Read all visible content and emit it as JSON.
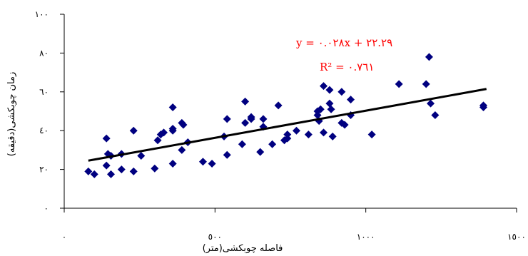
{
  "chart_data": {
    "type": "scatter",
    "xlabel": "فاصله چوبکشی(متر)",
    "ylabel": "زمان چوبکشی(دقیقه)",
    "xlim": [
      0,
      1500
    ],
    "ylim": [
      0,
      100
    ],
    "x_ticks": [
      0,
      500,
      1000,
      1500
    ],
    "x_tick_labels": [
      "٠",
      "٥٠٠",
      "١٠٠٠",
      "١٥٠٠"
    ],
    "y_ticks": [
      0,
      20,
      40,
      60,
      80,
      100
    ],
    "y_tick_labels": [
      "٠",
      "٢٠",
      "٤٠",
      "٦٠",
      "٨٠",
      "١٠٠"
    ],
    "marker_color": "#000080",
    "equation_color": "#ff0000",
    "trendline_color": "#000000",
    "series": [
      {
        "marker": "diamond",
        "points": [
          [
            80,
            19
          ],
          [
            100,
            17.5
          ],
          [
            140,
            36
          ],
          [
            145,
            28
          ],
          [
            140,
            22
          ],
          [
            155,
            27
          ],
          [
            155,
            17.5
          ],
          [
            190,
            28
          ],
          [
            190,
            20
          ],
          [
            230,
            19
          ],
          [
            230,
            40
          ],
          [
            255,
            27
          ],
          [
            300,
            20.5
          ],
          [
            310,
            35
          ],
          [
            320,
            38
          ],
          [
            330,
            39
          ],
          [
            360,
            52
          ],
          [
            360,
            41
          ],
          [
            360,
            40
          ],
          [
            360,
            23
          ],
          [
            390,
            30
          ],
          [
            390,
            44
          ],
          [
            395,
            43
          ],
          [
            410,
            34
          ],
          [
            460,
            24
          ],
          [
            490,
            23
          ],
          [
            530,
            37
          ],
          [
            540,
            46
          ],
          [
            540,
            27.5
          ],
          [
            590,
            33
          ],
          [
            600,
            55
          ],
          [
            600,
            44
          ],
          [
            620,
            47
          ],
          [
            620,
            46
          ],
          [
            650,
            29
          ],
          [
            660,
            46
          ],
          [
            660,
            42
          ],
          [
            690,
            33
          ],
          [
            710,
            53
          ],
          [
            730,
            35
          ],
          [
            740,
            38
          ],
          [
            740,
            36
          ],
          [
            770,
            40
          ],
          [
            810,
            38
          ],
          [
            840,
            48
          ],
          [
            840,
            50
          ],
          [
            845,
            45
          ],
          [
            850,
            51
          ],
          [
            860,
            39
          ],
          [
            860,
            63
          ],
          [
            880,
            61
          ],
          [
            880,
            54
          ],
          [
            885,
            51
          ],
          [
            890,
            37
          ],
          [
            920,
            60
          ],
          [
            920,
            44
          ],
          [
            930,
            43
          ],
          [
            950,
            56
          ],
          [
            950,
            48
          ],
          [
            1020,
            38
          ],
          [
            1110,
            64
          ],
          [
            1200,
            64
          ],
          [
            1210,
            78
          ],
          [
            1215,
            54
          ],
          [
            1230,
            48
          ],
          [
            1390,
            52
          ],
          [
            1390,
            53
          ]
        ]
      }
    ],
    "trendline": {
      "slope": 0.028,
      "intercept": 22.29,
      "x_range": [
        80,
        1400
      ]
    },
    "equation": "y = ٠.٠٢٨x + ٢٢.٢٩",
    "r2_label": "R² = ٠.٧٦١"
  }
}
